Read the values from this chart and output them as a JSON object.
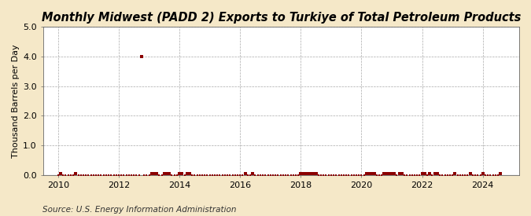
{
  "title": "Monthly Midwest (PADD 2) Exports to Turkiye of Total Petroleum Products",
  "ylabel": "Thousand Barrels per Day",
  "source": "Source: U.S. Energy Information Administration",
  "xlim": [
    2009.5,
    2025.2
  ],
  "ylim": [
    0.0,
    5.0
  ],
  "yticks": [
    0.0,
    1.0,
    2.0,
    3.0,
    4.0,
    5.0
  ],
  "xticks": [
    2010,
    2012,
    2014,
    2016,
    2018,
    2020,
    2022,
    2024
  ],
  "fig_background_color": "#f5e8c8",
  "plot_background_color": "#ffffff",
  "marker_color": "#8b0000",
  "baseline_color": "#000000",
  "data_points_x": [
    2010.0,
    2010.083,
    2010.167,
    2010.25,
    2010.333,
    2010.417,
    2010.5,
    2010.583,
    2010.667,
    2010.75,
    2010.833,
    2010.917,
    2011.0,
    2011.083,
    2011.167,
    2011.25,
    2011.333,
    2011.417,
    2011.5,
    2011.583,
    2011.667,
    2011.75,
    2011.833,
    2011.917,
    2012.0,
    2012.083,
    2012.167,
    2012.25,
    2012.333,
    2012.417,
    2012.5,
    2012.583,
    2012.667,
    2012.75,
    2012.833,
    2012.917,
    2013.0,
    2013.083,
    2013.167,
    2013.25,
    2013.333,
    2013.417,
    2013.5,
    2013.583,
    2013.667,
    2013.75,
    2013.833,
    2013.917,
    2014.0,
    2014.083,
    2014.167,
    2014.25,
    2014.333,
    2014.417,
    2014.5,
    2014.583,
    2014.667,
    2014.75,
    2014.833,
    2014.917,
    2015.0,
    2015.083,
    2015.167,
    2015.25,
    2015.333,
    2015.417,
    2015.5,
    2015.583,
    2015.667,
    2015.75,
    2015.833,
    2015.917,
    2016.0,
    2016.083,
    2016.167,
    2016.25,
    2016.333,
    2016.417,
    2016.5,
    2016.583,
    2016.667,
    2016.75,
    2016.833,
    2016.917,
    2017.0,
    2017.083,
    2017.167,
    2017.25,
    2017.333,
    2017.417,
    2017.5,
    2017.583,
    2017.667,
    2017.75,
    2017.833,
    2017.917,
    2018.0,
    2018.083,
    2018.167,
    2018.25,
    2018.333,
    2018.417,
    2018.5,
    2018.583,
    2018.667,
    2018.75,
    2018.833,
    2018.917,
    2019.0,
    2019.083,
    2019.167,
    2019.25,
    2019.333,
    2019.417,
    2019.5,
    2019.583,
    2019.667,
    2019.75,
    2019.833,
    2019.917,
    2020.0,
    2020.083,
    2020.167,
    2020.25,
    2020.333,
    2020.417,
    2020.5,
    2020.583,
    2020.667,
    2020.75,
    2020.833,
    2020.917,
    2021.0,
    2021.083,
    2021.167,
    2021.25,
    2021.333,
    2021.417,
    2021.5,
    2021.583,
    2021.667,
    2021.75,
    2021.833,
    2021.917,
    2022.0,
    2022.083,
    2022.167,
    2022.25,
    2022.333,
    2022.417,
    2022.5,
    2022.583,
    2022.667,
    2022.75,
    2022.833,
    2022.917,
    2023.0,
    2023.083,
    2023.167,
    2023.25,
    2023.333,
    2023.417,
    2023.5,
    2023.583,
    2023.667,
    2023.75,
    2023.833,
    2023.917,
    2024.0,
    2024.083,
    2024.167,
    2024.25,
    2024.333,
    2024.417,
    2024.5,
    2024.583
  ],
  "data_points_y": [
    0.0,
    0.06,
    0.0,
    0.0,
    0.0,
    0.0,
    0.0,
    0.05,
    0.0,
    0.0,
    0.0,
    0.0,
    0.0,
    0.0,
    0.0,
    0.0,
    0.0,
    0.0,
    0.0,
    0.0,
    0.0,
    0.0,
    0.0,
    0.0,
    0.0,
    0.0,
    0.0,
    0.0,
    0.0,
    0.0,
    0.0,
    0.0,
    0.0,
    4.0,
    0.0,
    0.0,
    0.0,
    0.06,
    0.06,
    0.06,
    0.0,
    0.0,
    0.05,
    0.05,
    0.05,
    0.0,
    0.0,
    0.0,
    0.06,
    0.06,
    0.0,
    0.06,
    0.06,
    0.0,
    0.0,
    0.0,
    0.0,
    0.0,
    0.0,
    0.0,
    0.0,
    0.0,
    0.0,
    0.0,
    0.0,
    0.0,
    0.0,
    0.0,
    0.0,
    0.0,
    0.0,
    0.0,
    0.0,
    0.0,
    0.05,
    0.0,
    0.0,
    0.05,
    0.0,
    0.0,
    0.0,
    0.0,
    0.0,
    0.0,
    0.0,
    0.0,
    0.0,
    0.0,
    0.0,
    0.0,
    0.0,
    0.0,
    0.0,
    0.0,
    0.0,
    0.0,
    0.05,
    0.05,
    0.05,
    0.05,
    0.05,
    0.05,
    0.05,
    0.0,
    0.0,
    0.0,
    0.0,
    0.0,
    0.0,
    0.0,
    0.0,
    0.0,
    0.0,
    0.0,
    0.0,
    0.0,
    0.0,
    0.0,
    0.0,
    0.0,
    0.0,
    0.0,
    0.05,
    0.05,
    0.05,
    0.05,
    0.0,
    0.0,
    0.0,
    0.05,
    0.05,
    0.05,
    0.05,
    0.05,
    0.0,
    0.05,
    0.05,
    0.0,
    0.0,
    0.0,
    0.0,
    0.0,
    0.0,
    0.0,
    0.05,
    0.05,
    0.0,
    0.05,
    0.0,
    0.05,
    0.05,
    0.0,
    0.0,
    0.0,
    0.0,
    0.0,
    0.0,
    0.05,
    0.0,
    0.0,
    0.0,
    0.0,
    0.0,
    0.05,
    0.0,
    0.0,
    0.0,
    0.0,
    0.05,
    0.0,
    0.0,
    0.0,
    0.0,
    0.0,
    0.0,
    0.05
  ],
  "title_fontsize": 10.5,
  "axis_fontsize": 8,
  "source_fontsize": 7.5
}
